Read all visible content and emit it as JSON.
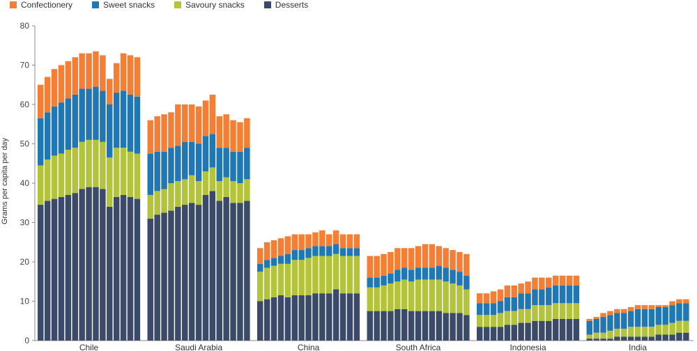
{
  "colors": {
    "confectionery": "#f47f34",
    "sweet_snacks": "#1f78b4",
    "savoury_snacks": "#b4c43a",
    "desserts": "#3b4a68"
  },
  "chart_data": {
    "type": "bar",
    "stacked": true,
    "title": "",
    "xlabel": "",
    "ylabel": "Grams per capita per day",
    "ylim": [
      0,
      80
    ],
    "yticks": [
      0,
      10,
      20,
      30,
      40,
      50,
      60,
      70,
      80
    ],
    "legend": [
      "Confectionery",
      "Sweet snacks",
      "Savoury snacks",
      "Desserts"
    ],
    "groups": [
      {
        "name": "Chile",
        "desserts": [
          34.5,
          35.5,
          36,
          36.5,
          37,
          37.5,
          38.5,
          39,
          39,
          38.5,
          34,
          36.5,
          37,
          36.5,
          36
        ],
        "savoury_snacks": [
          10,
          10.5,
          11,
          11,
          11.5,
          11.5,
          12,
          12,
          12,
          12,
          12.5,
          12.5,
          12,
          11.5,
          11.5
        ],
        "sweet_snacks": [
          12,
          12,
          12.5,
          13,
          13,
          13.5,
          13.5,
          13,
          13.5,
          13,
          13.5,
          14,
          14.5,
          14.5,
          14.5
        ],
        "confectionery": [
          8.5,
          9,
          9.5,
          9.5,
          9.5,
          9.5,
          9,
          9,
          9,
          9,
          6.5,
          7.5,
          9.5,
          10,
          10
        ]
      },
      {
        "name": "Saudi Arabia",
        "desserts": [
          31,
          32,
          32.5,
          33,
          34,
          34.5,
          35,
          34.5,
          37,
          38,
          35.5,
          36.5,
          35,
          35,
          35.5
        ],
        "savoury_snacks": [
          6,
          6,
          6,
          7,
          6.5,
          6.5,
          7,
          6,
          6,
          6,
          5,
          5,
          5.5,
          5,
          5.5
        ],
        "sweet_snacks": [
          10.5,
          10,
          9.5,
          9,
          9,
          9.5,
          8.5,
          9.5,
          9,
          8.5,
          8.5,
          7.5,
          7.5,
          8,
          8
        ],
        "confectionery": [
          8.5,
          9,
          9.5,
          9,
          10.5,
          9.5,
          9.5,
          9.5,
          9,
          10,
          8,
          8.5,
          8,
          7.5,
          7.5
        ]
      },
      {
        "name": "China",
        "desserts": [
          10,
          10.5,
          11,
          11.5,
          11,
          11.5,
          11.5,
          11.5,
          12,
          12,
          12,
          13,
          12,
          12,
          12
        ],
        "savoury_snacks": [
          7.5,
          8,
          8,
          8,
          8.5,
          9,
          9,
          9.5,
          9.5,
          9.5,
          9.5,
          9,
          9.5,
          9.5,
          9.5
        ],
        "sweet_snacks": [
          2,
          2,
          2,
          2,
          2.5,
          2.5,
          2.5,
          2.5,
          2.5,
          2.5,
          2.5,
          2.5,
          2,
          2,
          2
        ],
        "confectionery": [
          4,
          4.5,
          4.5,
          4.5,
          4.5,
          4,
          4,
          3.5,
          3.5,
          4,
          3,
          3.5,
          3.5,
          3.5,
          3.5
        ]
      },
      {
        "name": "South Africa",
        "desserts": [
          7.5,
          7.5,
          7.5,
          7.5,
          8,
          8,
          7.5,
          7.5,
          7.5,
          7.5,
          7.5,
          7,
          7,
          7,
          6.5
        ],
        "savoury_snacks": [
          6,
          6,
          6.5,
          7,
          7,
          7.5,
          7.5,
          8,
          8,
          8,
          8,
          8,
          7.5,
          7,
          6.5
        ],
        "sweet_snacks": [
          2.5,
          2.5,
          2.5,
          2.5,
          3,
          3,
          3,
          3,
          3,
          3,
          3.5,
          3.5,
          3.5,
          3.5,
          3.5
        ],
        "confectionery": [
          5.5,
          5.5,
          5.5,
          5.5,
          5.5,
          5,
          5.5,
          5.5,
          6,
          6,
          5,
          5,
          5,
          5,
          5.5
        ]
      },
      {
        "name": "Indonesia",
        "desserts": [
          3.5,
          3.5,
          3.5,
          3.5,
          4,
          4,
          4.5,
          4.5,
          5,
          5,
          5,
          5.5,
          5.5,
          5.5,
          5.5
        ],
        "savoury_snacks": [
          3,
          3,
          3,
          3.5,
          3.5,
          3.5,
          3.5,
          3.5,
          4,
          4,
          4,
          4,
          4,
          4,
          4
        ],
        "sweet_snacks": [
          3,
          3,
          3,
          3,
          3.5,
          3.5,
          4,
          4,
          4,
          4,
          4.5,
          4.5,
          4.5,
          4.5,
          4.5
        ],
        "confectionery": [
          2.5,
          2.5,
          3,
          3,
          3,
          3,
          2.5,
          3,
          3,
          3,
          2.5,
          2.5,
          2.5,
          2.5,
          2.5
        ]
      },
      {
        "name": "India",
        "desserts": [
          0.5,
          0.5,
          0.5,
          0.5,
          1,
          1,
          1,
          1,
          1,
          1,
          1.5,
          1.5,
          1.5,
          2,
          2
        ],
        "savoury_snacks": [
          1,
          1.5,
          1.5,
          2,
          2,
          2,
          2.5,
          2.5,
          2.5,
          2.5,
          2.5,
          2.5,
          3,
          3,
          3
        ],
        "sweet_snacks": [
          3.5,
          3.5,
          4,
          4,
          4,
          4,
          4,
          4.5,
          4.5,
          4.5,
          4.5,
          4.5,
          4.5,
          4.5,
          4.5
        ],
        "confectionery": [
          0.5,
          0.5,
          1,
          1,
          1,
          1,
          1,
          1,
          1,
          1,
          0.5,
          0.5,
          1,
          1,
          1
        ]
      }
    ]
  }
}
